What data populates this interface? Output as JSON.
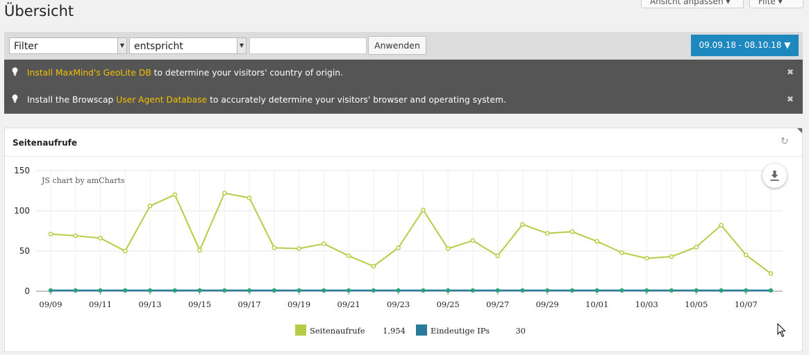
{
  "page": {
    "title": "Übersicht"
  },
  "top_buttons": {
    "customize": "Ansicht anpassen ▾",
    "filter": "Filte ▾"
  },
  "filterbar": {
    "field_select": "Filter",
    "operator_select": "entspricht",
    "value_input": "",
    "apply_label": "Anwenden",
    "date_range": "09.09.18 - 08.10.18 ▼"
  },
  "notices": [
    {
      "before": "",
      "link": "Install MaxMind's GeoLite DB",
      "after": " to determine your visitors' country of origin."
    },
    {
      "before": "Install the Browscap ",
      "link": "User Agent Database",
      "after": " to accurately determine your visitors' browser and operating system."
    }
  ],
  "widget": {
    "title": "Seitenaufrufe",
    "credit": "JS chart by amCharts"
  },
  "colors": {
    "accent": "#1e87bd",
    "series1": "#b5cc45",
    "series2": "#2a7a9b",
    "link": "#f3c000"
  },
  "icons": {
    "notice": "lightbulb-icon",
    "close": "close-icon",
    "refresh": "refresh-icon",
    "download": "download-icon",
    "cursor": "mouse-cursor-icon"
  },
  "chart_data": {
    "type": "line",
    "x": [
      "09/09",
      "09/10",
      "09/11",
      "09/12",
      "09/13",
      "09/14",
      "09/15",
      "09/16",
      "09/17",
      "09/18",
      "09/19",
      "09/20",
      "09/21",
      "09/22",
      "09/23",
      "09/24",
      "09/25",
      "09/26",
      "09/27",
      "09/28",
      "09/29",
      "09/30",
      "10/01",
      "10/02",
      "10/03",
      "10/04",
      "10/05",
      "10/06",
      "10/07",
      "10/08"
    ],
    "tick_labels": [
      "09/09",
      "09/11",
      "09/13",
      "09/15",
      "09/17",
      "09/19",
      "09/21",
      "09/23",
      "09/25",
      "09/27",
      "09/29",
      "10/01",
      "10/03",
      "10/05",
      "10/07"
    ],
    "y_ticks": [
      0,
      50,
      100,
      150
    ],
    "ylim": [
      0,
      150
    ],
    "grid": true,
    "series": [
      {
        "name": "Seitenaufrufe",
        "total": "1,954",
        "values": [
          71,
          69,
          66,
          50,
          106,
          120,
          51,
          122,
          116,
          54,
          53,
          59,
          44,
          31,
          54,
          101,
          53,
          63,
          44,
          83,
          72,
          74,
          62,
          48,
          41,
          43,
          55,
          82,
          45,
          22
        ]
      },
      {
        "name": "Eindeutige IPs",
        "total": "30",
        "values": [
          1,
          1,
          1,
          1,
          1,
          1,
          1,
          1,
          1,
          1,
          1,
          1,
          1,
          1,
          1,
          1,
          1,
          1,
          1,
          1,
          1,
          1,
          1,
          1,
          1,
          1,
          1,
          1,
          1,
          1
        ]
      }
    ]
  }
}
